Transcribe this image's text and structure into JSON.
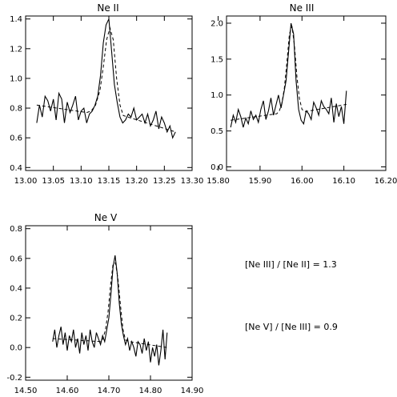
{
  "chart_data": [
    {
      "type": "line",
      "title": "Ne II",
      "xlabel": "",
      "ylabel": "",
      "xlim": [
        13.0,
        13.3
      ],
      "ylim": [
        0.38,
        1.42
      ],
      "xticks": [
        "13.00",
        "13.05",
        "13.10",
        "13.15",
        "13.20",
        "13.25",
        "13.30"
      ],
      "yticks": [
        "0.4",
        "0.6",
        "0.8",
        "1.0",
        "1.2",
        "1.4"
      ],
      "series": [
        {
          "style": "solid",
          "x": [
            13.02,
            13.025,
            13.03,
            13.035,
            13.04,
            13.045,
            13.05,
            13.055,
            13.06,
            13.065,
            13.07,
            13.075,
            13.08,
            13.085,
            13.09,
            13.095,
            13.1,
            13.105,
            13.11,
            13.115,
            13.12,
            13.125,
            13.13,
            13.135,
            13.14,
            13.145,
            13.15,
            13.155,
            13.16,
            13.165,
            13.17,
            13.175,
            13.18,
            13.185,
            13.19,
            13.195,
            13.2,
            13.205,
            13.21,
            13.215,
            13.22,
            13.225,
            13.23,
            13.235,
            13.24,
            13.245,
            13.25,
            13.255,
            13.26,
            13.265,
            13.27
          ],
          "y": [
            0.7,
            0.82,
            0.74,
            0.88,
            0.85,
            0.78,
            0.86,
            0.72,
            0.9,
            0.86,
            0.7,
            0.84,
            0.77,
            0.82,
            0.88,
            0.72,
            0.78,
            0.8,
            0.7,
            0.76,
            0.78,
            0.82,
            0.88,
            1.02,
            1.24,
            1.36,
            1.4,
            1.18,
            0.96,
            0.84,
            0.74,
            0.7,
            0.72,
            0.76,
            0.74,
            0.8,
            0.72,
            0.74,
            0.76,
            0.7,
            0.76,
            0.68,
            0.72,
            0.78,
            0.66,
            0.74,
            0.7,
            0.64,
            0.68,
            0.6,
            0.64
          ]
        },
        {
          "style": "dashed",
          "x": [
            13.02,
            13.11,
            13.118,
            13.126,
            13.134,
            13.14,
            13.146,
            13.152,
            13.158,
            13.164,
            13.17,
            13.176,
            13.184,
            13.27
          ],
          "y": [
            0.82,
            0.77,
            0.78,
            0.82,
            0.92,
            1.08,
            1.26,
            1.34,
            1.26,
            1.0,
            0.82,
            0.75,
            0.74,
            0.64
          ]
        }
      ]
    },
    {
      "type": "line",
      "title": "Ne III",
      "xlabel": "",
      "ylabel": "",
      "xlim": [
        15.82,
        16.2
      ],
      "ylim": [
        -0.05,
        2.1
      ],
      "xticks": [
        "15.80",
        "15.90",
        "16.00",
        "16.10",
        "16.20"
      ],
      "yticks": [
        "0.0",
        "0.5",
        "1.0",
        "1.5",
        "2.0"
      ],
      "series": [
        {
          "style": "solid",
          "x": [
            15.83,
            15.836,
            15.842,
            15.848,
            15.854,
            15.86,
            15.866,
            15.872,
            15.878,
            15.884,
            15.89,
            15.896,
            15.902,
            15.908,
            15.914,
            15.92,
            15.926,
            15.932,
            15.938,
            15.944,
            15.95,
            15.956,
            15.962,
            15.968,
            15.974,
            15.98,
            15.986,
            15.992,
            15.998,
            16.004,
            16.01,
            16.016,
            16.022,
            16.028,
            16.034,
            16.04,
            16.046,
            16.052,
            16.058,
            16.064,
            16.07,
            16.076,
            16.082,
            16.088,
            16.094,
            16.1,
            16.106
          ],
          "y": [
            0.55,
            0.72,
            0.62,
            0.8,
            0.7,
            0.55,
            0.68,
            0.6,
            0.78,
            0.66,
            0.72,
            0.62,
            0.8,
            0.92,
            0.66,
            0.78,
            0.96,
            0.72,
            0.86,
            1.0,
            0.82,
            1.0,
            1.2,
            1.6,
            2.0,
            1.85,
            1.2,
            0.8,
            0.65,
            0.6,
            0.78,
            0.74,
            0.66,
            0.9,
            0.82,
            0.72,
            0.92,
            0.84,
            0.8,
            0.74,
            0.96,
            0.62,
            0.88,
            0.7,
            0.84,
            0.6,
            1.06
          ]
        },
        {
          "style": "dashed",
          "x": [
            15.83,
            15.94,
            15.946,
            15.952,
            15.958,
            15.964,
            15.97,
            15.976,
            15.982,
            15.988,
            15.994,
            16.0,
            16.008,
            16.106
          ],
          "y": [
            0.65,
            0.74,
            0.78,
            0.88,
            1.1,
            1.45,
            1.85,
            1.96,
            1.7,
            1.25,
            0.95,
            0.8,
            0.77,
            0.87
          ]
        }
      ]
    },
    {
      "type": "line",
      "title": "Ne V",
      "xlabel": "",
      "ylabel": "",
      "xlim": [
        14.5,
        14.9
      ],
      "ylim": [
        -0.22,
        0.82
      ],
      "xticks": [
        "14.50",
        "14.60",
        "14.70",
        "14.80",
        "14.90"
      ],
      "yticks": [
        "-0.2",
        "0.0",
        "0.2",
        "0.4",
        "0.6",
        "0.8"
      ],
      "series": [
        {
          "style": "solid",
          "x": [
            14.565,
            14.57,
            14.575,
            14.58,
            14.585,
            14.59,
            14.595,
            14.6,
            14.605,
            14.61,
            14.615,
            14.62,
            14.625,
            14.63,
            14.635,
            14.64,
            14.645,
            14.65,
            14.655,
            14.66,
            14.665,
            14.67,
            14.675,
            14.68,
            14.685,
            14.69,
            14.695,
            14.7,
            14.705,
            14.71,
            14.715,
            14.72,
            14.725,
            14.73,
            14.735,
            14.74,
            14.745,
            14.75,
            14.755,
            14.76,
            14.765,
            14.77,
            14.775,
            14.78,
            14.785,
            14.79,
            14.795,
            14.8,
            14.805,
            14.81,
            14.815,
            14.82,
            14.825,
            14.83,
            14.835,
            14.84
          ],
          "y": [
            0.04,
            0.12,
            0.0,
            0.08,
            0.14,
            0.02,
            0.1,
            -0.02,
            0.08,
            0.04,
            0.12,
            0.0,
            0.06,
            -0.04,
            0.1,
            0.02,
            0.08,
            -0.02,
            0.12,
            0.04,
            0.0,
            0.1,
            0.06,
            0.02,
            0.08,
            0.04,
            0.12,
            0.2,
            0.36,
            0.54,
            0.62,
            0.5,
            0.3,
            0.16,
            0.08,
            0.02,
            0.06,
            -0.02,
            0.04,
            0.0,
            -0.06,
            0.04,
            0.02,
            -0.04,
            0.06,
            -0.02,
            0.04,
            -0.1,
            0.0,
            -0.06,
            0.02,
            -0.12,
            -0.02,
            0.12,
            -0.08,
            0.1
          ]
        },
        {
          "style": "dashed",
          "x": [
            14.565,
            14.68,
            14.686,
            14.692,
            14.698,
            14.704,
            14.71,
            14.716,
            14.722,
            14.728,
            14.734,
            14.74,
            14.75,
            14.84
          ],
          "y": [
            0.06,
            0.04,
            0.06,
            0.12,
            0.24,
            0.42,
            0.56,
            0.57,
            0.46,
            0.28,
            0.12,
            0.05,
            0.04,
            0.0
          ]
        }
      ]
    }
  ],
  "annotations": {
    "ratio_ne3_ne2": "[Ne III] / [Ne II] = 1.3",
    "ratio_ne5_ne3": "[Ne V] / [Ne III] = 0.9"
  }
}
